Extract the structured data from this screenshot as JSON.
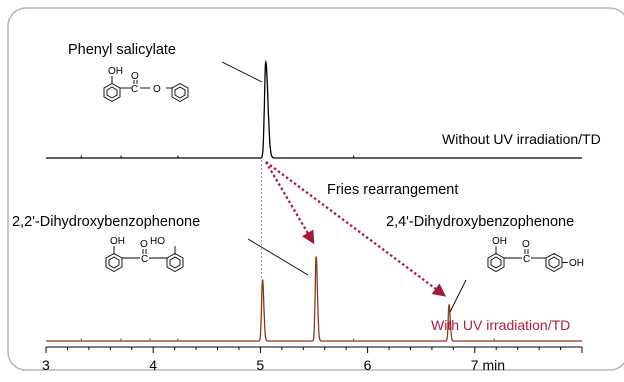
{
  "chart_data": {
    "type": "line",
    "xlabel": "",
    "ylabel": "",
    "xlim": [
      3,
      8
    ],
    "x_ticks": [
      3,
      4,
      5,
      6,
      7
    ],
    "x_tick_labels": [
      "3",
      "4",
      "5",
      "6",
      "7 min"
    ],
    "grid": false,
    "series": [
      {
        "name": "Without UV irradiation/TD",
        "color": "#000000",
        "baseline": 0,
        "peaks": [
          {
            "x": 5.05,
            "height": 1.0,
            "width": 0.012,
            "tail": 0.02
          }
        ],
        "trace_artifacts": [
          3.33,
          3.7,
          4.23,
          5.87
        ]
      },
      {
        "name": "With UV irradiation/TD",
        "color": "#8b3a17",
        "baseline": 0,
        "peaks": [
          {
            "x": 5.02,
            "height": 0.64,
            "width": 0.009,
            "tail": 0.012
          },
          {
            "x": 5.52,
            "height": 0.88,
            "width": 0.009,
            "tail": 0.012
          },
          {
            "x": 6.76,
            "height": 0.38,
            "width": 0.008,
            "tail": 0.011
          }
        ],
        "trace_artifacts": [
          3.33,
          3.7,
          3.97,
          4.23,
          5.87,
          7.18
        ]
      }
    ],
    "annotations": {
      "phenyl_salicylate": "Phenyl salicylate",
      "fries": "Fries rearrangement",
      "dihydroxy_22": "2,2'-Dihydroxybenzophenone",
      "dihydroxy_24": "2,4'-Dihydroxybenzophenone",
      "label_without": "Without UV irradiation/TD",
      "label_with": "With UV irradiation/TD"
    },
    "structure_labels": {
      "oh": "OH",
      "ho": "HO",
      "o": "O",
      "c": "C"
    },
    "colors": {
      "with_series": "#8b3a17",
      "with_label": "#b01e3c",
      "arrow": "#a2193a",
      "frame": "#b5b5b5"
    }
  }
}
